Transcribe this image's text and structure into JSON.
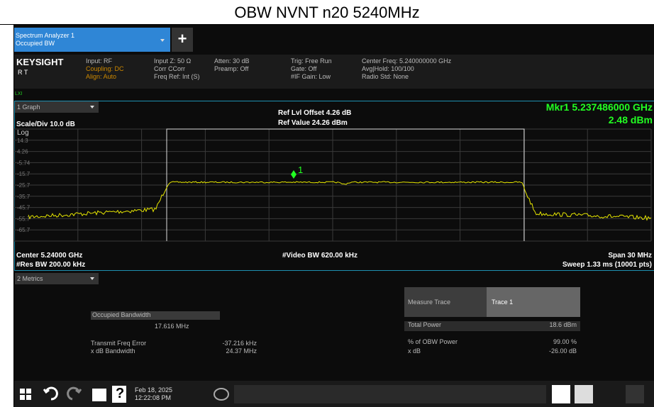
{
  "title": "OBW NVNT n20 5240MHz",
  "tab": {
    "name": "Spectrum Analyzer 1",
    "mode": "Occupied BW",
    "add": "+"
  },
  "header": {
    "brand": "KEYSIGHT",
    "status": "R  T",
    "lxi": "LXI",
    "col1": [
      "Input: RF",
      "Coupling: DC",
      "Align: Auto"
    ],
    "col2": [
      "Input Z: 50 Ω",
      "Corr CCorr",
      "Freq Ref: Int (S)"
    ],
    "col3": [
      "Atten: 30 dB",
      "Preamp: Off"
    ],
    "col4": [
      "Trig: Free Run",
      "Gate: Off",
      "#IF Gain: Low"
    ],
    "col5": [
      "Center Freq: 5.240000000 GHz",
      "Avg|Hold: 100/100",
      "Radio Std: None"
    ]
  },
  "graph": {
    "window": "1 Graph",
    "scale": "Scale/Div 10.0 dB",
    "log": "Log",
    "ylabels": [
      "14.3",
      "4.26",
      "-5.74",
      "-15.7",
      "-25.7",
      "-35.7",
      "-45.7",
      "-55.7",
      "-65.7"
    ],
    "ref_offset": "Ref Lvl Offset 4.26 dB",
    "ref_value": "Ref Value 24.26 dBm",
    "marker_freq": "Mkr1 5.237486000 GHz",
    "marker_level": "2.48 dBm",
    "marker_label": "1",
    "center": "Center 5.24000 GHz",
    "res_bw": "#Res BW 200.00 kHz",
    "video_bw": "#Video BW 620.00 kHz",
    "span": "Span 30 MHz",
    "sweep": "Sweep 1.33 ms (10001 pts)"
  },
  "metrics": {
    "window": "2 Metrics",
    "obw_label": "Occupied Bandwidth",
    "obw_value": "17.616 MHz",
    "tfe_label": "Transmit Freq Error",
    "tfe_value": "-37.216 kHz",
    "xdb_label": "x dB Bandwidth",
    "xdb_value": "24.37 MHz",
    "table": [
      [
        "Measure Trace",
        "Trace 1"
      ],
      [
        "Total Power",
        "18.6 dBm"
      ],
      [
        "% of OBW Power",
        "99.00 %"
      ],
      [
        "x dB",
        "-26.00 dB"
      ]
    ]
  },
  "taskbar": {
    "help": "?",
    "date": "Feb 18, 2025",
    "time": "12:22:08 PM"
  }
}
